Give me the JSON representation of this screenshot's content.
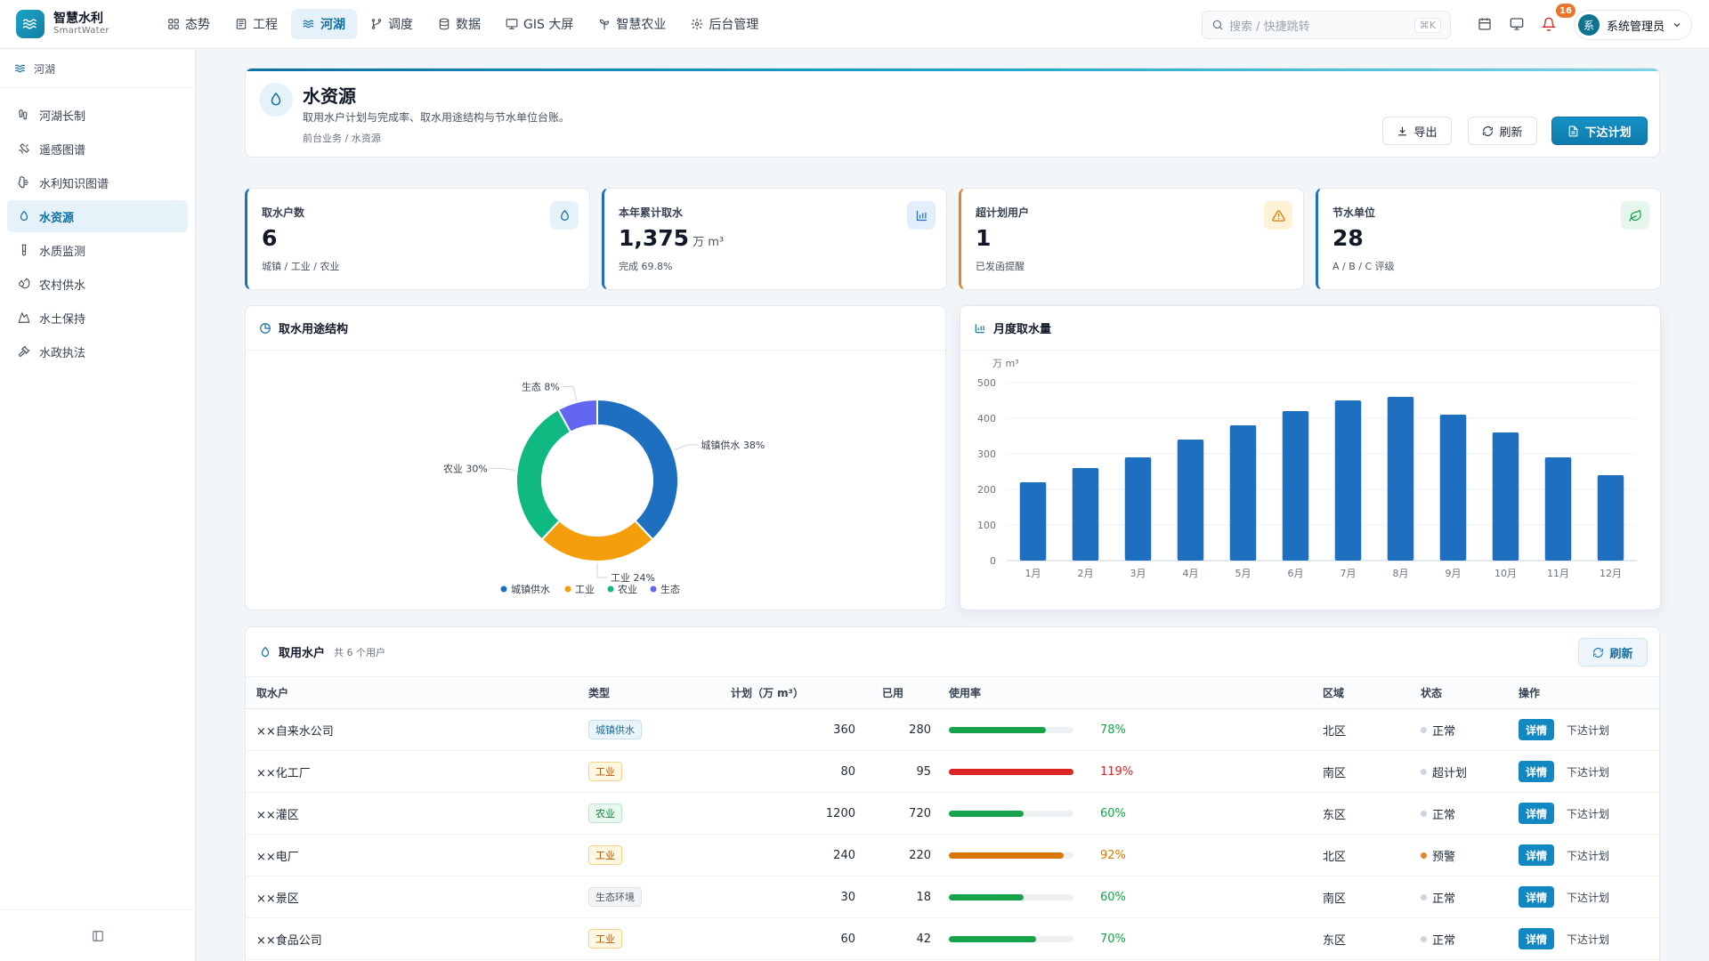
{
  "brand": {
    "name": "智慧水利",
    "sub": "SmartWater"
  },
  "nav": [
    {
      "label": "态势",
      "icon": "dashboard-icon"
    },
    {
      "label": "工程",
      "icon": "project-icon"
    },
    {
      "label": "河湖",
      "icon": "waves-icon",
      "active": true
    },
    {
      "label": "调度",
      "icon": "dispatch-icon"
    },
    {
      "label": "数据",
      "icon": "database-icon"
    },
    {
      "label": "GIS 大屏",
      "icon": "monitor-icon"
    },
    {
      "label": "智慧农业",
      "icon": "sprout-icon"
    },
    {
      "label": "后台管理",
      "icon": "gear-icon"
    }
  ],
  "search": {
    "placeholder": "搜索 / 快捷跳转",
    "shortcut": "⌘K"
  },
  "notifications": {
    "count": "16"
  },
  "user": {
    "avatar": "系",
    "name": "系统管理员"
  },
  "sidebar": {
    "section": "河湖",
    "items": [
      {
        "label": "河湖长制",
        "icon": "footprints-icon"
      },
      {
        "label": "遥感图谱",
        "icon": "satellite-icon"
      },
      {
        "label": "水利知识图谱",
        "icon": "brain-icon"
      },
      {
        "label": "水资源",
        "icon": "droplet-icon",
        "active": true
      },
      {
        "label": "水质监测",
        "icon": "test-tube-icon"
      },
      {
        "label": "农村供水",
        "icon": "water-supply-icon"
      },
      {
        "label": "水土保持",
        "icon": "mountain-icon"
      },
      {
        "label": "水政执法",
        "icon": "gavel-icon"
      }
    ]
  },
  "page": {
    "title": "水资源",
    "desc": "取用水户计划与完成率、取水用途结构与节水单位台账。",
    "crumb": "前台业务 / 水资源",
    "export_label": "导出",
    "refresh_label": "刷新",
    "issue_label": "下达计划"
  },
  "stats": [
    {
      "label": "取水户数",
      "value": "6",
      "unit": "",
      "sub": "城镇 / 工业 / 农业",
      "color": "#1e6fbf",
      "icon": "droplet-icon"
    },
    {
      "label": "本年累计取水",
      "value": "1,375",
      "unit": "万 m³",
      "sub": "完成 69.8%",
      "color": "#1e6fbf",
      "icon": "bar-chart-icon"
    },
    {
      "label": "超计划用户",
      "value": "1",
      "unit": "",
      "sub": "已发函提醒",
      "color": "#e0852b",
      "icon": "warning-icon"
    },
    {
      "label": "节水单位",
      "value": "28",
      "unit": "",
      "sub": "A / B / C 评级",
      "color": "#1e6fbf",
      "icon": "leaf-icon"
    }
  ],
  "chart_data": [
    {
      "type": "pie",
      "title": "取水用途结构",
      "categories": [
        "城镇供水",
        "工业",
        "农业",
        "生态"
      ],
      "values": [
        38,
        24,
        30,
        8
      ],
      "colors": [
        "#1e6fbf",
        "#f59e0b",
        "#10b981",
        "#6366f1"
      ],
      "legend": "bottom"
    },
    {
      "type": "bar",
      "title": "月度取水量",
      "ylabel": "万 m³",
      "categories": [
        "1月",
        "2月",
        "3月",
        "4月",
        "5月",
        "6月",
        "7月",
        "8月",
        "9月",
        "10月",
        "11月",
        "12月"
      ],
      "values": [
        220,
        260,
        290,
        340,
        380,
        420,
        450,
        460,
        410,
        360,
        290,
        240
      ],
      "yticks": [
        "0",
        "100",
        "200",
        "300",
        "400",
        "500"
      ],
      "ylim": [
        0,
        500
      ],
      "color": "#1e6fbf",
      "grid": true
    }
  ],
  "table": {
    "title": "取用水户",
    "count": "共 6 个用户",
    "refresh_label": "刷新",
    "columns": [
      "取水户",
      "类型",
      "计划（万 m³）",
      "已用",
      "使用率",
      "区域",
      "状态",
      "操作"
    ],
    "rows": [
      {
        "name": "××自来水公司",
        "type": "城镇供水",
        "tag": "city",
        "plan": "360",
        "used": "280",
        "rate": 78,
        "rate_text": "78%",
        "color": "#16a34a",
        "region": "北区",
        "status": "正常",
        "status_color": "#cbd5e1"
      },
      {
        "name": "××化工厂",
        "type": "工业",
        "tag": "ind",
        "plan": "80",
        "used": "95",
        "rate": 119,
        "rate_text": "119%",
        "color": "#dc2626",
        "region": "南区",
        "status": "超计划",
        "status_color": "#cbd5e1"
      },
      {
        "name": "××灌区",
        "type": "农业",
        "tag": "agri",
        "plan": "1200",
        "used": "720",
        "rate": 60,
        "rate_text": "60%",
        "color": "#16a34a",
        "region": "东区",
        "status": "正常",
        "status_color": "#cbd5e1"
      },
      {
        "name": "××电厂",
        "type": "工业",
        "tag": "ind",
        "plan": "240",
        "used": "220",
        "rate": 92,
        "rate_text": "92%",
        "color": "#d97706",
        "region": "北区",
        "status": "预警",
        "status_color": "#e0852b"
      },
      {
        "name": "××景区",
        "type": "生态环境",
        "tag": "eco",
        "plan": "30",
        "used": "18",
        "rate": 60,
        "rate_text": "60%",
        "color": "#16a34a",
        "region": "南区",
        "status": "正常",
        "status_color": "#cbd5e1"
      },
      {
        "name": "××食品公司",
        "type": "工业",
        "tag": "ind",
        "plan": "60",
        "used": "42",
        "rate": 70,
        "rate_text": "70%",
        "color": "#16a34a",
        "region": "东区",
        "status": "正常",
        "status_color": "#cbd5e1"
      }
    ],
    "detail_label": "详情",
    "issue_label": "下达计划"
  }
}
